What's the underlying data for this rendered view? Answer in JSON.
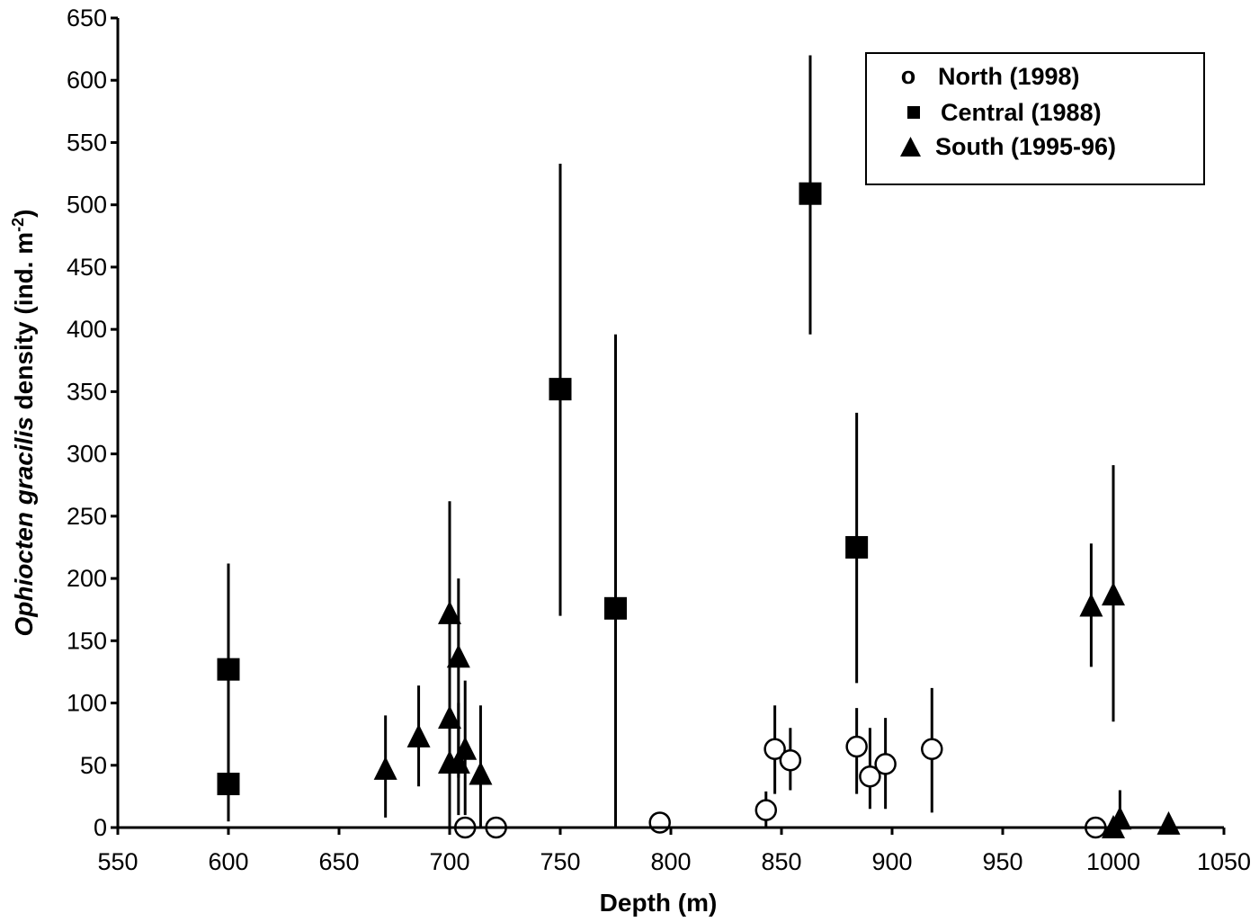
{
  "chart_data": {
    "type": "scatter",
    "title": "",
    "xlabel": "Depth (m)",
    "ylabel": "Ophiocten gracilis density (ind. m-2)",
    "ylabel_parts": {
      "italic": "Ophiocten gracilis",
      "normal": " density (ind. m",
      "sup": "-2",
      "close": ")"
    },
    "xlim": [
      550,
      1050
    ],
    "ylim": [
      0,
      650
    ],
    "xticks": [
      550,
      600,
      650,
      700,
      750,
      800,
      850,
      900,
      950,
      1000,
      1050
    ],
    "yticks": [
      0,
      50,
      100,
      150,
      200,
      250,
      300,
      350,
      400,
      450,
      500,
      550,
      600,
      650
    ],
    "grid": false,
    "legend_position": "upper right",
    "series": [
      {
        "name": "North (1998)",
        "marker": "open-circle",
        "points": [
          {
            "x": 707,
            "y": 0,
            "lo": 0,
            "hi": 0
          },
          {
            "x": 721,
            "y": 0,
            "lo": 0,
            "hi": 0
          },
          {
            "x": 795,
            "y": 4,
            "lo": 4,
            "hi": 4
          },
          {
            "x": 843,
            "y": 14,
            "lo": 0,
            "hi": 29
          },
          {
            "x": 847,
            "y": 63,
            "lo": 27,
            "hi": 98
          },
          {
            "x": 854,
            "y": 54,
            "lo": 30,
            "hi": 80
          },
          {
            "x": 884,
            "y": 65,
            "lo": 27,
            "hi": 96
          },
          {
            "x": 890,
            "y": 41,
            "lo": 15,
            "hi": 80
          },
          {
            "x": 897,
            "y": 51,
            "lo": 15,
            "hi": 88
          },
          {
            "x": 918,
            "y": 63,
            "lo": 12,
            "hi": 112
          },
          {
            "x": 992,
            "y": 0,
            "lo": 0,
            "hi": 0
          }
        ]
      },
      {
        "name": "Central (1988)",
        "marker": "filled-square",
        "points": [
          {
            "x": 600,
            "y": 127,
            "lo": 5,
            "hi": 212
          },
          {
            "x": 600,
            "y": 35,
            "lo": 5,
            "hi": 65
          },
          {
            "x": 750,
            "y": 352,
            "lo": 170,
            "hi": 533
          },
          {
            "x": 775,
            "y": 176,
            "lo": 0,
            "hi": 396
          },
          {
            "x": 863,
            "y": 509,
            "lo": 396,
            "hi": 620
          },
          {
            "x": 884,
            "y": 225,
            "lo": 116,
            "hi": 333
          }
        ]
      },
      {
        "name": "South (1995-96)",
        "marker": "filled-triangle",
        "points": [
          {
            "x": 671,
            "y": 47,
            "lo": 8,
            "hi": 90
          },
          {
            "x": 686,
            "y": 73,
            "lo": 33,
            "hi": 114
          },
          {
            "x": 700,
            "y": 172,
            "lo": 0,
            "hi": 262
          },
          {
            "x": 704,
            "y": 137,
            "lo": 40,
            "hi": 200
          },
          {
            "x": 700,
            "y": 88,
            "lo": 0,
            "hi": 140
          },
          {
            "x": 700,
            "y": 52,
            "lo": 0,
            "hi": 80
          },
          {
            "x": 704,
            "y": 52,
            "lo": 10,
            "hi": 100
          },
          {
            "x": 707,
            "y": 63,
            "lo": 10,
            "hi": 118
          },
          {
            "x": 714,
            "y": 43,
            "lo": 0,
            "hi": 98
          },
          {
            "x": 990,
            "y": 178,
            "lo": 129,
            "hi": 228
          },
          {
            "x": 1000,
            "y": 187,
            "lo": 85,
            "hi": 291
          },
          {
            "x": 1003,
            "y": 7,
            "lo": 0,
            "hi": 30
          },
          {
            "x": 1000,
            "y": 0,
            "lo": 0,
            "hi": 0
          },
          {
            "x": 1025,
            "y": 3,
            "lo": 3,
            "hi": 3
          }
        ]
      }
    ],
    "legend": [
      {
        "label": "North (1998)",
        "marker": "o"
      },
      {
        "label": "Central (1988)",
        "marker": "■"
      },
      {
        "label": "South (1995-96)",
        "marker": "▲"
      }
    ]
  }
}
